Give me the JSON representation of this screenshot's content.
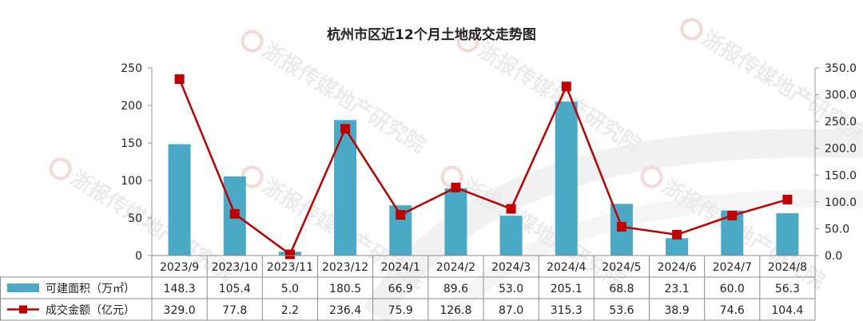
{
  "chart_data": {
    "type": "bar",
    "title": "杭州市区近12个月土地成交走势图",
    "categories": [
      "2023/9",
      "2023/10",
      "2023/11",
      "2023/12",
      "2024/1",
      "2024/2",
      "2024/3",
      "2024/4",
      "2024/5",
      "2024/6",
      "2024/7",
      "2024/8"
    ],
    "series": [
      {
        "name": "可建面积（万㎡）",
        "type": "bar",
        "axis": "left",
        "color": "#4aaac5",
        "values": [
          148.3,
          105.4,
          5.0,
          180.5,
          66.9,
          89.6,
          53.0,
          205.1,
          68.8,
          23.1,
          60.0,
          56.3
        ],
        "value_labels": [
          "148.3",
          "105.4",
          "5.0",
          "180.5",
          "66.9",
          "89.6",
          "53.0",
          "205.1",
          "68.8",
          "23.1",
          "60.0",
          "56.3"
        ]
      },
      {
        "name": "成交金额（亿元）",
        "type": "line",
        "axis": "right",
        "color": "#c00000",
        "values": [
          329.0,
          77.8,
          2.2,
          236.4,
          75.9,
          126.8,
          87.0,
          315.3,
          53.6,
          38.9,
          74.6,
          104.4
        ],
        "value_labels": [
          "329.0",
          "77.8",
          "2.2",
          "236.4",
          "75.9",
          "126.8",
          "87.0",
          "315.3",
          "53.6",
          "38.9",
          "74.6",
          "104.4"
        ]
      }
    ],
    "y_left": {
      "min": 0,
      "max": 250,
      "ticks": [
        0,
        50,
        100,
        150,
        200,
        250
      ],
      "tick_labels": [
        "0",
        "50",
        "100",
        "150",
        "200",
        "250"
      ]
    },
    "y_right": {
      "min": 0,
      "max": 350,
      "ticks": [
        0,
        50,
        100,
        150,
        200,
        250,
        300,
        350
      ],
      "tick_labels": [
        "0.0",
        "50.0",
        "100.0",
        "150.0",
        "200.0",
        "250.0",
        "300.0",
        "350.0"
      ]
    },
    "grid": false,
    "legend": "data-table-left",
    "data_table": true
  },
  "watermark": {
    "text": "浙报传媒地产研究院",
    "icon": "brand-logo-icon"
  }
}
